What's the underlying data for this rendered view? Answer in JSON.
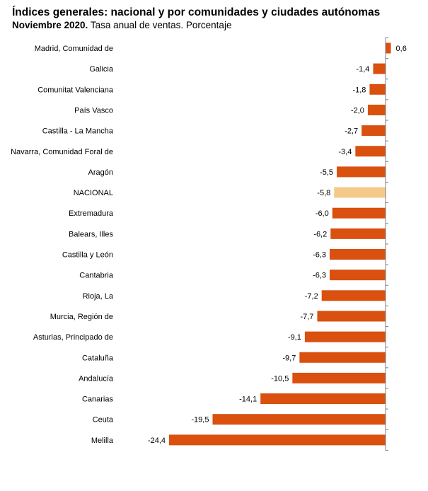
{
  "header": {
    "title": "Índices generales: nacional y por comunidades y ciudades autónomas",
    "subtitle_bold": "Noviembre 2020.",
    "subtitle_rest": " Tasa anual de ventas. Porcentaje"
  },
  "colors": {
    "bar": "#d9500f",
    "highlight": "#f5c98a",
    "axis": "#7f7f7f"
  },
  "chart_data": {
    "type": "bar",
    "orientation": "horizontal",
    "title": "Índices generales: nacional y por comunidades y ciudades autónomas",
    "subtitle": "Noviembre 2020. Tasa anual de ventas. Porcentaje",
    "xlabel": "",
    "ylabel": "",
    "xlim": [
      -24.4,
      0.6
    ],
    "grid": false,
    "highlight": "NACIONAL",
    "categories": [
      "Madrid, Comunidad de",
      "Galicia",
      "Comunitat Valenciana",
      "País Vasco",
      "Castilla - La Mancha",
      "Navarra, Comunidad Foral de",
      "Aragón",
      "NACIONAL",
      "Extremadura",
      "Balears, Illes",
      "Castilla y León",
      "Cantabria",
      "Rioja, La",
      "Murcia, Región de",
      "Asturias, Principado de",
      "Cataluña",
      "Andalucía",
      "Canarias",
      "Ceuta",
      "Melilla"
    ],
    "values": [
      0.6,
      -1.4,
      -1.8,
      -2.0,
      -2.7,
      -3.4,
      -5.5,
      -5.8,
      -6.0,
      -6.2,
      -6.3,
      -6.3,
      -7.2,
      -7.7,
      -9.1,
      -9.7,
      -10.5,
      -14.1,
      -19.5,
      -24.4
    ],
    "value_labels": [
      "0,6",
      "-1,4",
      "-1,8",
      "-2,0",
      "-2,7",
      "-3,4",
      "-5,5",
      "-5,8",
      "-6,0",
      "-6,2",
      "-6,3",
      "-6,3",
      "-7,2",
      "-7,7",
      "-9,1",
      "-9,7",
      "-10,5",
      "-14,1",
      "-19,5",
      "-24,4"
    ]
  }
}
